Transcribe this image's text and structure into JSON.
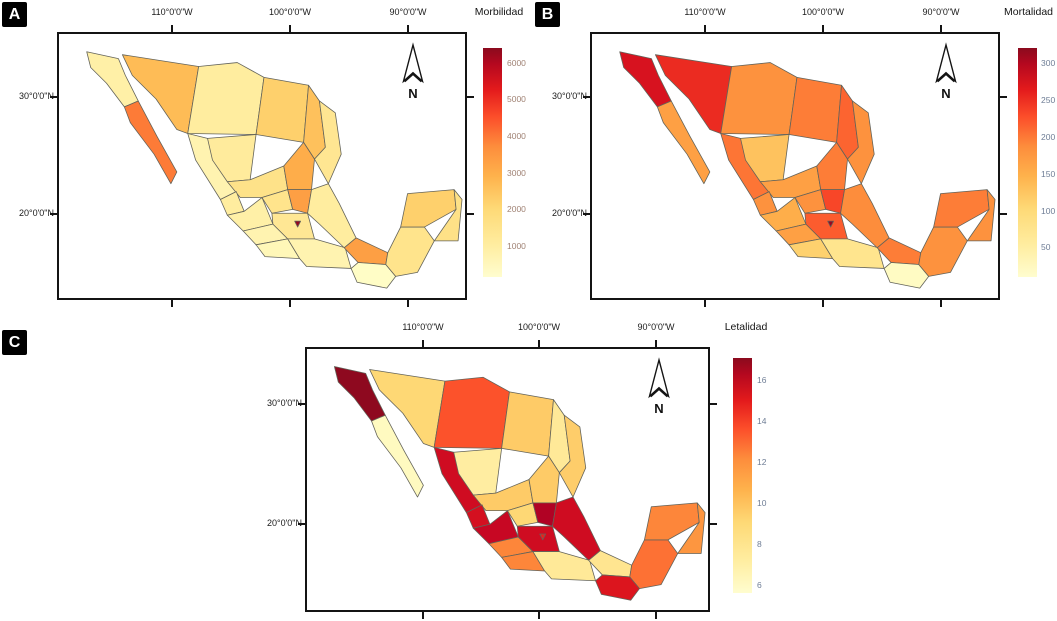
{
  "figure": {
    "background": "#ffffff",
    "panels": [
      {
        "label": "A",
        "legend_title": "Morbilidad",
        "axis_top": [
          "110°0'0\"W",
          "100°0'0\"W",
          "90°0'0\"W"
        ],
        "axis_left": [
          "30°0'0\"N",
          "20°0'0\"N"
        ],
        "north_label": "N",
        "tick_label_color": "#a08274"
      },
      {
        "label": "B",
        "legend_title": "Mortalidad",
        "axis_top": [
          "110°0'0\"W",
          "100°0'0\"W",
          "90°0'0\"W"
        ],
        "axis_left": [
          "30°0'0\"N",
          "20°0'0\"N"
        ],
        "north_label": "N",
        "tick_label_color": "#6e7d95"
      },
      {
        "label": "C",
        "legend_title": "Letalidad",
        "axis_top": [
          "110°0'0\"W",
          "100°0'0\"W",
          "90°0'0\"W"
        ],
        "axis_left": [
          "30°0'0\"N",
          "20°0'0\"N"
        ],
        "north_label": "N",
        "tick_label_color": "#6e7d95"
      }
    ]
  },
  "colors": {
    "frame": "#141414",
    "state_border": "#63635a",
    "badge_bg": "#000000",
    "badge_fg": "#ffffff",
    "colormap_stops": [
      "#ffffcc",
      "#ffeda0",
      "#fed976",
      "#feb24c",
      "#fd8d3c",
      "#fc4e2a",
      "#e31a1c",
      "#bd0026",
      "#8b0a1e"
    ]
  },
  "chart_data": [
    {
      "type": "choropleth",
      "title": "Morbilidad",
      "region": "Mexico (states)",
      "colormap": "YlOrRd",
      "legend_position": "right",
      "scale_range": [
        150,
        6400
      ],
      "scale_ticks": [
        6000,
        5000,
        4000,
        3000,
        2000,
        1000
      ],
      "values": {
        "baja_california": 800,
        "baja_california_sur": 3500,
        "sonora": 2300,
        "chihuahua": 950,
        "coahuila": 1900,
        "nuevo_leon": 2200,
        "tamaulipas": 1200,
        "sinaloa": 650,
        "durango": 1000,
        "zacatecas": 1350,
        "san_luis_potosi": 2600,
        "nayarit": 950,
        "jalisco": 800,
        "guanajuato": 1300,
        "queretaro_hidalgo": 2900,
        "michoacan": 650,
        "edomex_puebla": 1150,
        "veracruz": 950,
        "guerrero": 500,
        "oaxaca": 650,
        "tabasco": 2900,
        "chiapas": 250,
        "campeche": 1300,
        "yucatan": 1900,
        "quintana_roo": 1400,
        "cdmx": 6200
      }
    },
    {
      "type": "choropleth",
      "title": "Mortalidad",
      "region": "Mexico (states)",
      "colormap": "YlOrRd",
      "legend_position": "right",
      "scale_range": [
        10,
        320
      ],
      "scale_ticks": [
        300,
        250,
        200,
        150,
        100,
        50
      ],
      "values": {
        "baja_california": 255,
        "baja_california_sur": 145,
        "sonora": 230,
        "chihuahua": 160,
        "coahuila": 175,
        "nuevo_leon": 190,
        "tamaulipas": 160,
        "sinaloa": 180,
        "durango": 110,
        "zacatecas": 145,
        "san_luis_potosi": 175,
        "nayarit": 160,
        "jalisco": 130,
        "guanajuato": 160,
        "queretaro_hidalgo": 210,
        "michoacan": 145,
        "edomex_puebla": 195,
        "veracruz": 165,
        "guerrero": 95,
        "oaxaca": 65,
        "tabasco": 175,
        "chiapas": 18,
        "campeche": 160,
        "yucatan": 175,
        "quintana_roo": 160,
        "cdmx": 310
      }
    },
    {
      "type": "choropleth",
      "title": "Letalidad",
      "region": "Mexico (states)",
      "colormap": "YlOrRd",
      "legend_position": "right",
      "scale_range": [
        5.6,
        17.1
      ],
      "scale_ticks": [
        16,
        14,
        12,
        10,
        8,
        6
      ],
      "values": {
        "baja_california": 17,
        "baja_california_sur": 6,
        "sonora": 8.5,
        "chihuahua": 12.7,
        "coahuila": 9,
        "nuevo_leon": 7.3,
        "tamaulipas": 8.9,
        "sinaloa": 15,
        "durango": 7,
        "zacatecas": 9,
        "san_luis_potosi": 9,
        "nayarit": 14.8,
        "jalisco": 15.3,
        "guanajuato": 8.5,
        "queretaro_hidalgo": 16,
        "michoacan": 11.5,
        "edomex_puebla": 15,
        "veracruz": 15,
        "guerrero": 11.5,
        "oaxaca": 7.3,
        "tabasco": 7.6,
        "chiapas": 14.5,
        "campeche": 12,
        "yucatan": 11.5,
        "quintana_roo": 11,
        "cdmx": 14
      }
    }
  ]
}
